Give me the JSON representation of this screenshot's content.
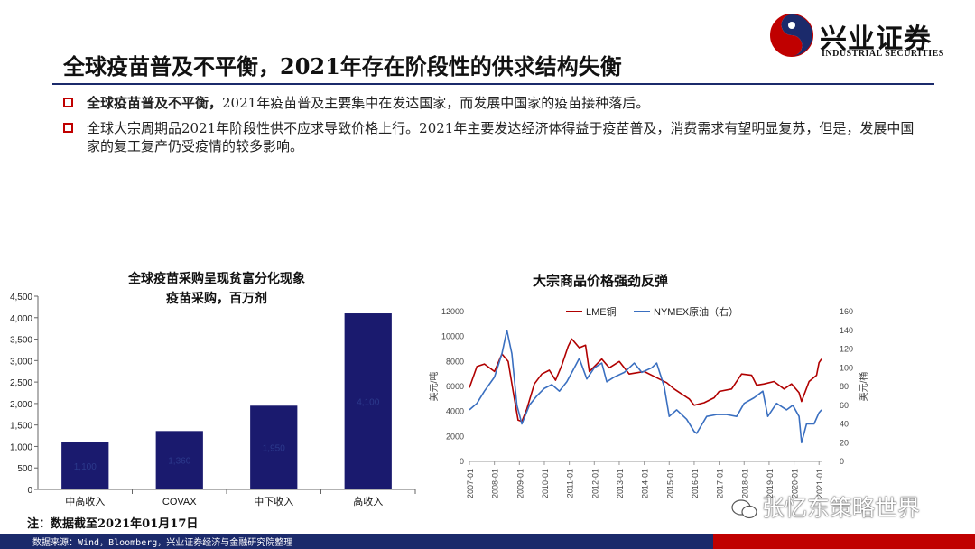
{
  "brand": {
    "name_cn": "兴业证券",
    "name_en": "INDUSTRIAL SECURITIES"
  },
  "page_title": "全球疫苗普及不平衡，2021年存在阶段性的供求结构失衡",
  "bullets": [
    {
      "lead": "全球疫苗普及不平衡，",
      "text": "2021年疫苗普及主要集中在发达国家，而发展中国家的疫苗接种落后。"
    },
    {
      "lead": "",
      "text": "全球大宗周期品2021年阶段性供不应求导致价格上行。2021年主要发达经济体得益于疫苗普及，消费需求有望明显复苏，但是，发展中国家的复工复产仍受疫情的较多影响。"
    }
  ],
  "chart_data": [
    {
      "type": "bar",
      "title": "全球疫苗采购呈现贫富分化现象",
      "subtitle": "疫苗采购，百万剂",
      "categories": [
        "中高收入",
        "COVAX",
        "中下收入",
        "高收入"
      ],
      "values": [
        1100,
        1360,
        1950,
        4100
      ],
      "data_labels": [
        "1,100",
        "1,360",
        "1,950",
        "4,100"
      ],
      "ylim": [
        0,
        4500
      ],
      "yticks": [
        "0",
        "500",
        "1,000",
        "1,500",
        "2,000",
        "2,500",
        "3,000",
        "3,500",
        "4,000",
        "4,500"
      ],
      "colors": {
        "bar": "#1a1a6e",
        "label": "#2c3a8c"
      }
    },
    {
      "type": "line",
      "title": "大宗商品价格强劲反弹",
      "ylabel_left": "美元/吨",
      "ylabel_right": "美元/桶",
      "ylim_left": [
        0,
        12000
      ],
      "ylim_right": [
        0,
        160
      ],
      "yticks_left": [
        "0",
        "2000",
        "4000",
        "6000",
        "8000",
        "10000",
        "12000"
      ],
      "yticks_right": [
        "0",
        "20",
        "40",
        "60",
        "80",
        "100",
        "120",
        "140",
        "160"
      ],
      "xticks": [
        "2007-01",
        "2008-01",
        "2009-01",
        "2010-01",
        "2011-01",
        "2012-01",
        "2013-01",
        "2014-01",
        "2015-01",
        "2016-01",
        "2017-01",
        "2018-01",
        "2019-01",
        "2020-01",
        "2021-01"
      ],
      "series": [
        {
          "name": "LME铜",
          "axis": "left",
          "color": "#b00000",
          "x": [
            2007.0,
            2007.3,
            2007.6,
            2008.0,
            2008.3,
            2008.55,
            2008.8,
            2008.95,
            2009.1,
            2009.3,
            2009.6,
            2009.9,
            2010.2,
            2010.45,
            2010.7,
            2010.95,
            2011.1,
            2011.4,
            2011.65,
            2011.8,
            2012.0,
            2012.3,
            2012.6,
            2013.0,
            2013.4,
            2013.7,
            2014.0,
            2014.5,
            2014.9,
            2015.2,
            2015.5,
            2015.8,
            2016.0,
            2016.4,
            2016.8,
            2017.0,
            2017.5,
            2017.9,
            2018.3,
            2018.5,
            2018.8,
            2019.2,
            2019.6,
            2019.9,
            2020.2,
            2020.3,
            2020.6,
            2020.9,
            2021.0,
            2021.1
          ],
          "y": [
            5900,
            7600,
            7800,
            7200,
            8600,
            8000,
            5000,
            3300,
            3200,
            4200,
            6200,
            7000,
            7300,
            6500,
            7700,
            9200,
            9800,
            9100,
            9300,
            7200,
            7600,
            8200,
            7500,
            8000,
            7000,
            7100,
            7200,
            6700,
            6300,
            5800,
            5400,
            5000,
            4500,
            4700,
            5100,
            5600,
            5800,
            7000,
            6900,
            6100,
            6200,
            6400,
            5800,
            6200,
            5500,
            4800,
            6400,
            6900,
            7900,
            8200
          ]
        },
        {
          "name": "NYMEX原油（右）",
          "axis": "right",
          "color": "#3a6fc0",
          "x": [
            2007.0,
            2007.3,
            2007.6,
            2008.0,
            2008.3,
            2008.5,
            2008.7,
            2008.9,
            2009.1,
            2009.4,
            2009.7,
            2010.0,
            2010.3,
            2010.6,
            2010.9,
            2011.2,
            2011.4,
            2011.7,
            2012.0,
            2012.3,
            2012.5,
            2012.8,
            2013.2,
            2013.6,
            2013.9,
            2014.3,
            2014.5,
            2014.8,
            2015.0,
            2015.3,
            2015.7,
            2016.0,
            2016.1,
            2016.5,
            2016.9,
            2017.3,
            2017.7,
            2018.0,
            2018.4,
            2018.75,
            2018.95,
            2019.3,
            2019.7,
            2019.95,
            2020.2,
            2020.3,
            2020.5,
            2020.8,
            2021.0,
            2021.1
          ],
          "y": [
            55,
            62,
            75,
            90,
            115,
            140,
            115,
            60,
            40,
            60,
            70,
            78,
            82,
            75,
            85,
            100,
            110,
            88,
            100,
            105,
            85,
            90,
            95,
            105,
            95,
            100,
            105,
            80,
            48,
            55,
            45,
            32,
            30,
            48,
            50,
            50,
            48,
            62,
            68,
            75,
            48,
            62,
            55,
            60,
            48,
            20,
            40,
            40,
            52,
            55
          ]
        }
      ]
    }
  ],
  "note": "注：数据截至2021年01月17日",
  "footer": "数据来源：Wind，Bloomberg，兴业证券经济与金融研究院整理",
  "watermark": "张忆东策略世界",
  "colors": {
    "brand_navy": "#1b2a6b",
    "brand_red": "#c00000"
  }
}
